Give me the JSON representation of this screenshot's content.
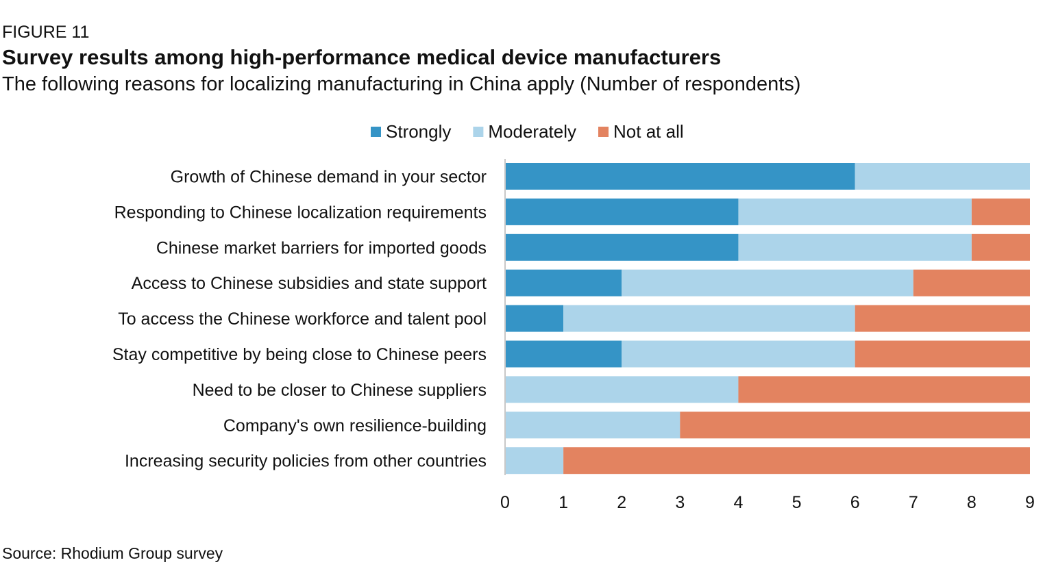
{
  "figure_label": "FIGURE 11",
  "source": "Source: Rhodium Group survey",
  "colors": {
    "Strongly": "#3594c6",
    "Moderately": "#acd4ea",
    "Not at all": "#e38360",
    "axis": "#c8c8c8"
  },
  "chart_data": {
    "type": "bar",
    "orientation": "horizontal",
    "stacked": true,
    "title": "Survey results among high-performance medical device manufacturers",
    "subtitle": "The following reasons for localizing manufacturing in China apply (Number of respondents)",
    "categories": [
      "Growth of Chinese demand in your sector",
      "Responding to Chinese localization requirements",
      "Chinese market barriers for imported goods",
      "Access to Chinese subsidies and state support",
      "To access the Chinese workforce and talent pool",
      "Stay competitive by being close to Chinese peers",
      "Need to be closer to Chinese suppliers",
      "Company's own resilience-building",
      "Increasing security policies from other countries"
    ],
    "series": [
      {
        "name": "Strongly",
        "values": [
          6,
          4,
          4,
          2,
          1,
          2,
          0,
          0,
          0
        ]
      },
      {
        "name": "Moderately",
        "values": [
          3,
          4,
          4,
          5,
          5,
          4,
          4,
          3,
          1
        ]
      },
      {
        "name": "Not at all",
        "values": [
          0,
          1,
          1,
          2,
          3,
          3,
          5,
          6,
          8
        ]
      }
    ],
    "xlim": [
      0,
      9
    ],
    "xticks": [
      "0",
      "1",
      "2",
      "3",
      "4",
      "5",
      "6",
      "7",
      "8",
      "9"
    ],
    "xlabel": "",
    "ylabel": "",
    "grid": false,
    "legend": "top"
  }
}
